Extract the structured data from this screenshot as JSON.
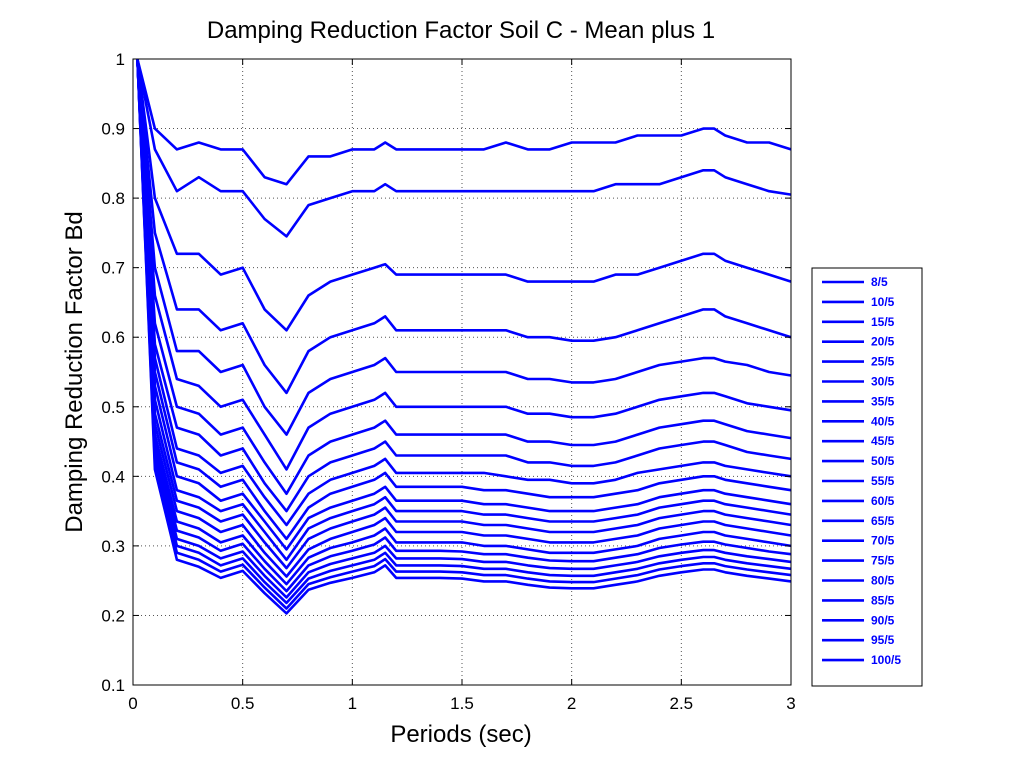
{
  "chart_data": {
    "type": "line",
    "title": "Damping Reduction Factor Soil C - Mean plus 1",
    "xlabel": "Periods (sec)",
    "ylabel": "Damping Reduction Factor Bd",
    "xlim": [
      0,
      3
    ],
    "ylim": [
      0.1,
      1
    ],
    "xticks": [
      0,
      0.5,
      1,
      1.5,
      2,
      2.5,
      3
    ],
    "xtick_labels": [
      "0",
      "0.5",
      "1",
      "1.5",
      "2",
      "2.5",
      "3"
    ],
    "yticks": [
      0.1,
      0.2,
      0.3,
      0.4,
      0.5,
      0.6,
      0.7,
      0.8,
      0.9,
      1
    ],
    "ytick_labels": [
      "0.1",
      "0.2",
      "0.3",
      "0.4",
      "0.5",
      "0.6",
      "0.7",
      "0.8",
      "0.9",
      "1"
    ],
    "grid": true,
    "legend_position": "outside-right",
    "line_color": "#0000ff",
    "x": [
      0.02,
      0.1,
      0.2,
      0.3,
      0.4,
      0.5,
      0.6,
      0.7,
      0.8,
      0.9,
      1.0,
      1.1,
      1.15,
      1.2,
      1.3,
      1.4,
      1.5,
      1.6,
      1.7,
      1.8,
      1.9,
      2.0,
      2.1,
      2.2,
      2.3,
      2.4,
      2.5,
      2.6,
      2.65,
      2.7,
      2.8,
      2.9,
      3.0
    ],
    "series": [
      {
        "name": "8/5",
        "values": [
          1.0,
          0.9,
          0.87,
          0.88,
          0.87,
          0.87,
          0.83,
          0.82,
          0.86,
          0.86,
          0.87,
          0.87,
          0.88,
          0.87,
          0.87,
          0.87,
          0.87,
          0.87,
          0.88,
          0.87,
          0.87,
          0.88,
          0.88,
          0.88,
          0.89,
          0.89,
          0.89,
          0.9,
          0.9,
          0.89,
          0.88,
          0.88,
          0.87
        ]
      },
      {
        "name": "10/5",
        "values": [
          1.0,
          0.87,
          0.81,
          0.83,
          0.81,
          0.81,
          0.77,
          0.745,
          0.79,
          0.8,
          0.81,
          0.81,
          0.82,
          0.81,
          0.81,
          0.81,
          0.81,
          0.81,
          0.81,
          0.81,
          0.81,
          0.81,
          0.81,
          0.82,
          0.82,
          0.82,
          0.83,
          0.84,
          0.84,
          0.83,
          0.82,
          0.81,
          0.805
        ]
      },
      {
        "name": "15/5",
        "values": [
          1.0,
          0.8,
          0.72,
          0.72,
          0.69,
          0.7,
          0.64,
          0.61,
          0.66,
          0.68,
          0.69,
          0.7,
          0.705,
          0.69,
          0.69,
          0.69,
          0.69,
          0.69,
          0.69,
          0.68,
          0.68,
          0.68,
          0.68,
          0.69,
          0.69,
          0.7,
          0.71,
          0.72,
          0.72,
          0.71,
          0.7,
          0.69,
          0.68
        ]
      },
      {
        "name": "20/5",
        "values": [
          1.0,
          0.75,
          0.64,
          0.64,
          0.61,
          0.62,
          0.56,
          0.52,
          0.58,
          0.6,
          0.61,
          0.62,
          0.63,
          0.61,
          0.61,
          0.61,
          0.61,
          0.61,
          0.61,
          0.6,
          0.6,
          0.595,
          0.595,
          0.6,
          0.61,
          0.62,
          0.63,
          0.64,
          0.64,
          0.63,
          0.62,
          0.61,
          0.6
        ]
      },
      {
        "name": "25/5",
        "values": [
          1.0,
          0.7,
          0.58,
          0.58,
          0.55,
          0.56,
          0.5,
          0.46,
          0.52,
          0.54,
          0.55,
          0.56,
          0.57,
          0.55,
          0.55,
          0.55,
          0.55,
          0.55,
          0.55,
          0.54,
          0.54,
          0.535,
          0.535,
          0.54,
          0.55,
          0.56,
          0.565,
          0.57,
          0.57,
          0.565,
          0.56,
          0.55,
          0.545
        ]
      },
      {
        "name": "30/5",
        "values": [
          1.0,
          0.66,
          0.54,
          0.53,
          0.5,
          0.51,
          0.46,
          0.41,
          0.47,
          0.49,
          0.5,
          0.51,
          0.52,
          0.5,
          0.5,
          0.5,
          0.5,
          0.5,
          0.5,
          0.49,
          0.49,
          0.485,
          0.485,
          0.49,
          0.5,
          0.51,
          0.515,
          0.52,
          0.52,
          0.515,
          0.505,
          0.5,
          0.495
        ]
      },
      {
        "name": "35/5",
        "values": [
          1.0,
          0.62,
          0.5,
          0.49,
          0.46,
          0.47,
          0.42,
          0.375,
          0.43,
          0.45,
          0.46,
          0.47,
          0.48,
          0.46,
          0.46,
          0.46,
          0.46,
          0.46,
          0.46,
          0.45,
          0.45,
          0.445,
          0.445,
          0.45,
          0.46,
          0.47,
          0.475,
          0.48,
          0.48,
          0.475,
          0.465,
          0.46,
          0.455
        ]
      },
      {
        "name": "40/5",
        "values": [
          1.0,
          0.59,
          0.47,
          0.46,
          0.43,
          0.44,
          0.39,
          0.35,
          0.4,
          0.42,
          0.43,
          0.44,
          0.45,
          0.43,
          0.43,
          0.43,
          0.43,
          0.43,
          0.43,
          0.42,
          0.42,
          0.415,
          0.415,
          0.42,
          0.43,
          0.44,
          0.445,
          0.45,
          0.45,
          0.445,
          0.435,
          0.43,
          0.425
        ]
      },
      {
        "name": "45/5",
        "values": [
          1.0,
          0.57,
          0.44,
          0.43,
          0.405,
          0.415,
          0.37,
          0.33,
          0.375,
          0.395,
          0.405,
          0.415,
          0.425,
          0.405,
          0.405,
          0.405,
          0.405,
          0.405,
          0.4,
          0.395,
          0.395,
          0.39,
          0.39,
          0.395,
          0.405,
          0.41,
          0.415,
          0.42,
          0.42,
          0.415,
          0.41,
          0.405,
          0.4
        ]
      },
      {
        "name": "50/5",
        "values": [
          1.0,
          0.55,
          0.42,
          0.41,
          0.385,
          0.395,
          0.35,
          0.31,
          0.355,
          0.375,
          0.385,
          0.395,
          0.405,
          0.385,
          0.385,
          0.385,
          0.385,
          0.38,
          0.38,
          0.375,
          0.37,
          0.37,
          0.37,
          0.375,
          0.38,
          0.39,
          0.395,
          0.4,
          0.4,
          0.395,
          0.39,
          0.385,
          0.38
        ]
      },
      {
        "name": "55/5",
        "values": [
          1.0,
          0.53,
          0.4,
          0.39,
          0.365,
          0.375,
          0.335,
          0.295,
          0.34,
          0.355,
          0.365,
          0.375,
          0.385,
          0.365,
          0.365,
          0.365,
          0.365,
          0.36,
          0.36,
          0.355,
          0.35,
          0.35,
          0.35,
          0.355,
          0.36,
          0.37,
          0.375,
          0.38,
          0.38,
          0.375,
          0.37,
          0.365,
          0.36
        ]
      },
      {
        "name": "60/5",
        "values": [
          1.0,
          0.51,
          0.38,
          0.37,
          0.35,
          0.36,
          0.32,
          0.28,
          0.325,
          0.34,
          0.35,
          0.36,
          0.37,
          0.35,
          0.35,
          0.35,
          0.35,
          0.345,
          0.345,
          0.34,
          0.335,
          0.335,
          0.335,
          0.34,
          0.345,
          0.355,
          0.36,
          0.365,
          0.365,
          0.36,
          0.355,
          0.35,
          0.345
        ]
      },
      {
        "name": "65/5",
        "values": [
          1.0,
          0.49,
          0.365,
          0.355,
          0.335,
          0.345,
          0.305,
          0.268,
          0.31,
          0.325,
          0.335,
          0.345,
          0.355,
          0.335,
          0.335,
          0.335,
          0.335,
          0.33,
          0.33,
          0.325,
          0.32,
          0.32,
          0.32,
          0.325,
          0.33,
          0.34,
          0.345,
          0.35,
          0.35,
          0.345,
          0.34,
          0.335,
          0.33
        ]
      },
      {
        "name": "70/5",
        "values": [
          1.0,
          0.475,
          0.35,
          0.34,
          0.32,
          0.33,
          0.29,
          0.256,
          0.295,
          0.31,
          0.32,
          0.33,
          0.34,
          0.32,
          0.32,
          0.32,
          0.32,
          0.315,
          0.315,
          0.31,
          0.305,
          0.305,
          0.305,
          0.31,
          0.315,
          0.325,
          0.33,
          0.335,
          0.335,
          0.33,
          0.325,
          0.32,
          0.315
        ]
      },
      {
        "name": "75/5",
        "values": [
          1.0,
          0.46,
          0.335,
          0.325,
          0.305,
          0.315,
          0.278,
          0.245,
          0.283,
          0.297,
          0.305,
          0.315,
          0.325,
          0.305,
          0.305,
          0.305,
          0.305,
          0.3,
          0.3,
          0.295,
          0.29,
          0.29,
          0.29,
          0.295,
          0.3,
          0.31,
          0.315,
          0.32,
          0.32,
          0.315,
          0.31,
          0.305,
          0.3
        ]
      },
      {
        "name": "80/5",
        "values": [
          1.0,
          0.45,
          0.322,
          0.312,
          0.293,
          0.303,
          0.267,
          0.235,
          0.272,
          0.285,
          0.293,
          0.302,
          0.312,
          0.293,
          0.293,
          0.293,
          0.292,
          0.288,
          0.288,
          0.283,
          0.279,
          0.278,
          0.278,
          0.283,
          0.288,
          0.297,
          0.302,
          0.306,
          0.306,
          0.302,
          0.297,
          0.292,
          0.288
        ]
      },
      {
        "name": "85/5",
        "values": [
          1.0,
          0.44,
          0.31,
          0.3,
          0.282,
          0.292,
          0.257,
          0.226,
          0.262,
          0.274,
          0.282,
          0.29,
          0.3,
          0.282,
          0.282,
          0.282,
          0.281,
          0.277,
          0.277,
          0.272,
          0.268,
          0.267,
          0.267,
          0.272,
          0.277,
          0.285,
          0.29,
          0.294,
          0.294,
          0.29,
          0.285,
          0.281,
          0.277
        ]
      },
      {
        "name": "90/5",
        "values": [
          1.0,
          0.43,
          0.3,
          0.29,
          0.272,
          0.282,
          0.248,
          0.218,
          0.253,
          0.264,
          0.272,
          0.28,
          0.29,
          0.272,
          0.272,
          0.272,
          0.271,
          0.267,
          0.267,
          0.262,
          0.258,
          0.257,
          0.257,
          0.262,
          0.267,
          0.275,
          0.28,
          0.284,
          0.284,
          0.28,
          0.275,
          0.271,
          0.267
        ]
      },
      {
        "name": "95/5",
        "values": [
          1.0,
          0.42,
          0.29,
          0.28,
          0.263,
          0.273,
          0.24,
          0.21,
          0.245,
          0.255,
          0.263,
          0.271,
          0.281,
          0.263,
          0.263,
          0.263,
          0.262,
          0.258,
          0.258,
          0.253,
          0.249,
          0.248,
          0.248,
          0.253,
          0.258,
          0.266,
          0.271,
          0.275,
          0.275,
          0.271,
          0.266,
          0.262,
          0.258
        ]
      },
      {
        "name": "100/5",
        "values": [
          1.0,
          0.41,
          0.28,
          0.27,
          0.254,
          0.264,
          0.232,
          0.203,
          0.237,
          0.247,
          0.254,
          0.262,
          0.272,
          0.254,
          0.254,
          0.254,
          0.253,
          0.249,
          0.249,
          0.244,
          0.24,
          0.239,
          0.239,
          0.244,
          0.249,
          0.257,
          0.262,
          0.266,
          0.266,
          0.262,
          0.257,
          0.253,
          0.249
        ]
      }
    ]
  }
}
